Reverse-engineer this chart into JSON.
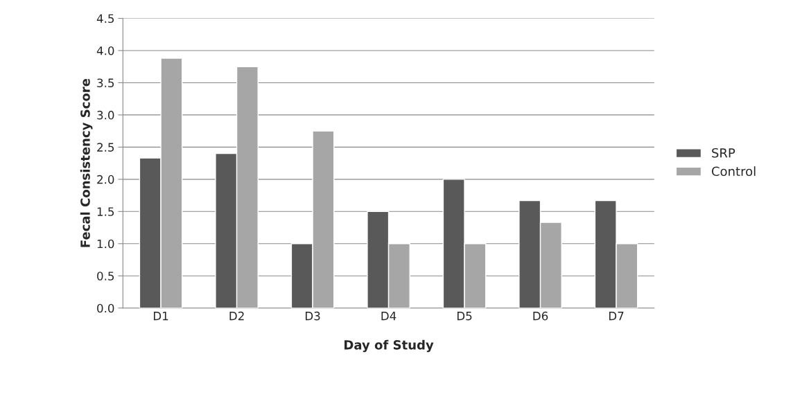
{
  "chart_data": {
    "type": "bar",
    "xlabel": "Day of Study",
    "ylabel": "Fecal Consistency Score",
    "categories": [
      "D1",
      "D2",
      "D3",
      "D4",
      "D5",
      "D6",
      "D7"
    ],
    "series": [
      {
        "name": "SRP",
        "color": "#595959",
        "values": [
          2.33,
          2.4,
          1.0,
          1.5,
          2.0,
          1.67,
          1.67
        ]
      },
      {
        "name": "Control",
        "color": "#a6a6a6",
        "values": [
          3.88,
          3.75,
          2.75,
          1.0,
          1.0,
          1.33,
          1.0
        ]
      }
    ],
    "ylim": [
      0,
      4.5
    ],
    "yticks": [
      {
        "value": 0,
        "label": "0.0"
      },
      {
        "value": 0.5,
        "label": "0.5"
      },
      {
        "value": 1,
        "label": "1.0"
      },
      {
        "value": 1.5,
        "label": "1.5"
      },
      {
        "value": 2,
        "label": "2.0"
      },
      {
        "value": 2.5,
        "label": "2.5"
      },
      {
        "value": 3,
        "label": "3.0"
      },
      {
        "value": 3.5,
        "label": "3.5"
      },
      {
        "value": 4,
        "label": "4.0"
      },
      {
        "value": 4.5,
        "label": "4.5"
      }
    ],
    "grid": "y",
    "legend": "right"
  }
}
